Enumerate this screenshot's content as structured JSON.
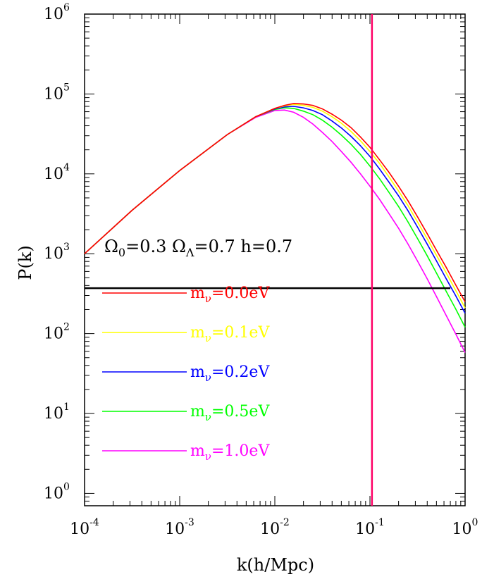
{
  "chart_data": {
    "type": "line",
    "xscale": "log",
    "yscale": "log",
    "xlim": [
      0.0001,
      1
    ],
    "ylim": [
      0.7,
      1000000
    ],
    "xlabel": "k(h/Mpc)",
    "ylabel": "P(k)",
    "x_tick_labels": [
      {
        "value": 0.0001,
        "base": "10",
        "exp": "-4"
      },
      {
        "value": 0.001,
        "base": "10",
        "exp": "-3"
      },
      {
        "value": 0.01,
        "base": "10",
        "exp": "-2"
      },
      {
        "value": 0.1,
        "base": "10",
        "exp": "-1"
      },
      {
        "value": 1,
        "base": "10",
        "exp": "0"
      }
    ],
    "y_tick_labels": [
      {
        "value": 1,
        "base": "10",
        "exp": "0"
      },
      {
        "value": 10,
        "base": "10",
        "exp": "1"
      },
      {
        "value": 100,
        "base": "10",
        "exp": "2"
      },
      {
        "value": 1000,
        "base": "10",
        "exp": "3"
      },
      {
        "value": 10000,
        "base": "10",
        "exp": "4"
      },
      {
        "value": 100000,
        "base": "10",
        "exp": "5"
      },
      {
        "value": 1000000,
        "base": "10",
        "exp": "6"
      }
    ],
    "annotation": "Ω₀=0.3 Ω_Λ=0.7 h=0.7",
    "legend_position": "lower-left",
    "series": [
      {
        "name": "mν=0.0eV",
        "label_main": "m",
        "label_sub": "ν",
        "label_rest": "=0.0eV",
        "color": "#ff0000",
        "x": [
          0.0001,
          0.000316,
          0.001,
          0.00316,
          0.00631,
          0.01,
          0.0126,
          0.0158,
          0.02,
          0.0251,
          0.0316,
          0.0398,
          0.0501,
          0.0631,
          0.0794,
          0.1,
          0.126,
          0.158,
          0.2,
          0.251,
          0.316,
          0.398,
          0.501,
          0.631,
          0.794,
          1
        ],
        "y": [
          1000,
          3500,
          11000,
          31000,
          52000,
          66000,
          72000,
          76000,
          75000,
          72000,
          65000,
          56000,
          47000,
          38000,
          29000,
          21500,
          15000,
          10500,
          7000,
          4600,
          2900,
          1800,
          1100,
          680,
          410,
          250
        ]
      },
      {
        "name": "mν=0.1eV",
        "label_main": "m",
        "label_sub": "ν",
        "label_rest": "=0.1eV",
        "color": "#ffff00",
        "x": [
          0.0001,
          0.000316,
          0.001,
          0.00316,
          0.00631,
          0.01,
          0.0126,
          0.0158,
          0.02,
          0.0251,
          0.0316,
          0.0398,
          0.0501,
          0.0631,
          0.0794,
          0.1,
          0.126,
          0.158,
          0.2,
          0.251,
          0.316,
          0.398,
          0.501,
          0.631,
          0.794,
          1
        ],
        "y": [
          1000,
          3500,
          11000,
          31000,
          52000,
          66000,
          71000,
          74000,
          72000,
          68000,
          61000,
          52000,
          43000,
          34000,
          26000,
          19000,
          13500,
          9200,
          6100,
          4000,
          2500,
          1550,
          950,
          580,
          350,
          210
        ]
      },
      {
        "name": "mν=0.2eV",
        "label_main": "m",
        "label_sub": "ν",
        "label_rest": "=0.2eV",
        "color": "#0000ff",
        "x": [
          0.0001,
          0.000316,
          0.001,
          0.00316,
          0.00631,
          0.01,
          0.0126,
          0.0158,
          0.02,
          0.0251,
          0.0316,
          0.0398,
          0.0501,
          0.0631,
          0.0794,
          0.1,
          0.126,
          0.158,
          0.2,
          0.251,
          0.316,
          0.398,
          0.501,
          0.631,
          0.794,
          1
        ],
        "y": [
          1000,
          3500,
          11000,
          31000,
          52000,
          65000,
          69000,
          70000,
          67000,
          62000,
          55000,
          46000,
          37500,
          29500,
          22500,
          16500,
          11500,
          7900,
          5300,
          3450,
          2150,
          1330,
          810,
          490,
          300,
          180
        ]
      },
      {
        "name": "mν=0.5eV",
        "label_main": "m",
        "label_sub": "ν",
        "label_rest": "=0.5eV",
        "color": "#00ff00",
        "x": [
          0.0001,
          0.000316,
          0.001,
          0.00316,
          0.00631,
          0.01,
          0.0126,
          0.0158,
          0.02,
          0.0251,
          0.0316,
          0.0398,
          0.0501,
          0.0631,
          0.0794,
          0.1,
          0.126,
          0.158,
          0.2,
          0.251,
          0.316,
          0.398,
          0.501,
          0.631,
          0.794,
          1
        ],
        "y": [
          1000,
          3500,
          11000,
          31000,
          52000,
          64000,
          67000,
          66000,
          61000,
          55000,
          47000,
          38500,
          30500,
          23500,
          17500,
          12500,
          8700,
          5900,
          3900,
          2500,
          1550,
          950,
          570,
          340,
          205,
          120
        ]
      },
      {
        "name": "mν=1.0eV",
        "label_main": "m",
        "label_sub": "ν",
        "label_rest": "=1.0eV",
        "color": "#ff00ff",
        "x": [
          0.0001,
          0.000316,
          0.001,
          0.00316,
          0.00631,
          0.01,
          0.0126,
          0.0158,
          0.02,
          0.0251,
          0.0316,
          0.0398,
          0.0501,
          0.0631,
          0.0794,
          0.1,
          0.126,
          0.158,
          0.2,
          0.251,
          0.316,
          0.398,
          0.501,
          0.631,
          0.794,
          1
        ],
        "y": [
          1000,
          3500,
          11000,
          31000,
          51000,
          62000,
          63000,
          59000,
          51000,
          42000,
          33000,
          25500,
          19000,
          14000,
          10000,
          7000,
          4800,
          3200,
          2080,
          1320,
          810,
          490,
          290,
          170,
          100,
          58
        ]
      }
    ],
    "reference_lines": [
      {
        "orientation": "horizontal",
        "y": 370,
        "x_from": 0.0001,
        "x_to": 0.7,
        "color": "#000000"
      },
      {
        "orientation": "vertical",
        "x": 0.105,
        "color": "#ff0066"
      }
    ]
  }
}
